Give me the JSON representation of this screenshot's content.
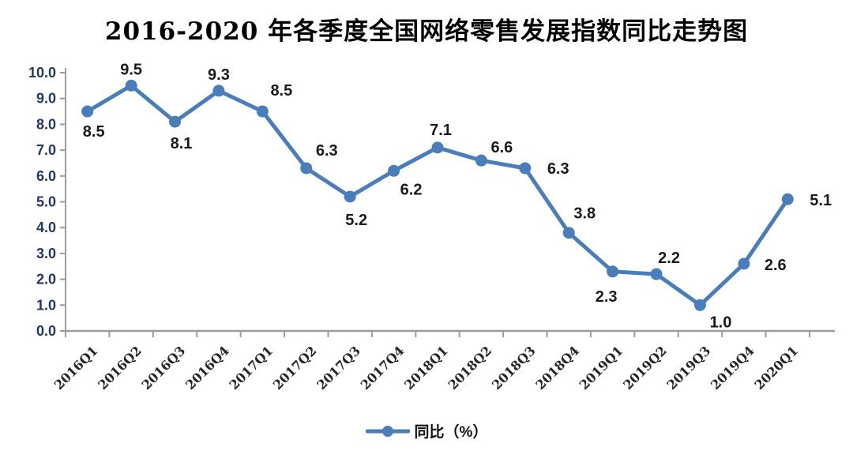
{
  "title": "2016-2020 年各季度全国网络零售发展指数同比走势图",
  "legend": {
    "label": "同比（%）"
  },
  "colors": {
    "line": "#4A7EBB",
    "marker": "#4A7EBB",
    "data_label": "#1a1a1a",
    "yaxis_label": "#1F3864",
    "xaxis_label": "#262626",
    "axis": "#9C9C9C"
  },
  "chart_data": {
    "type": "line",
    "title": "2016-2020 年各季度全国网络零售发展指数同比走势图",
    "categories": [
      "2016Q1",
      "2016Q2",
      "2016Q3",
      "2016Q4",
      "2017Q1",
      "2017Q2",
      "2017Q3",
      "2017Q4",
      "2018Q1",
      "2018Q2",
      "2018Q3",
      "2018Q4",
      "2019Q1",
      "2019Q2",
      "2019Q3",
      "2019Q4",
      "2020Q1"
    ],
    "series": [
      {
        "name": "同比（%）",
        "values": [
          8.5,
          9.5,
          8.1,
          9.3,
          8.5,
          6.3,
          5.2,
          6.2,
          7.1,
          6.6,
          6.3,
          3.8,
          2.3,
          2.2,
          1.0,
          2.6,
          5.1
        ]
      }
    ],
    "xlabel": "",
    "ylabel": "",
    "ylim": [
      0,
      10
    ],
    "ytick_labels": [
      "0.0",
      "1.0",
      "2.0",
      "3.0",
      "4.0",
      "5.0",
      "6.0",
      "7.0",
      "8.0",
      "9.0",
      "10.0"
    ],
    "grid": false,
    "legend_position": "bottom",
    "data_labels_visible": true
  }
}
